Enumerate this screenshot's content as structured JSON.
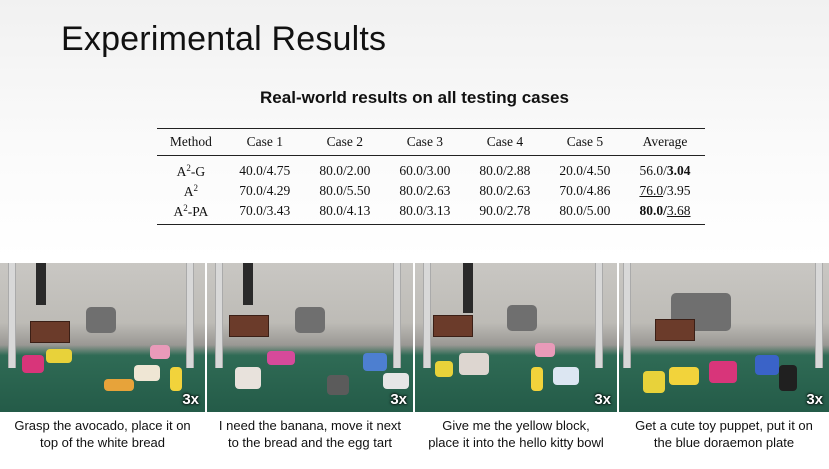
{
  "slide": {
    "title": "Experimental Results",
    "table_title": "Real-world results on all testing cases"
  },
  "table": {
    "headers": [
      "Method",
      "Case 1",
      "Case 2",
      "Case 3",
      "Case 4",
      "Case 5",
      "Average"
    ],
    "rows": [
      {
        "method_base": "A",
        "method_sup": "2",
        "method_suffix": "-G",
        "cells": [
          "40.0/4.75",
          "80.0/2.00",
          "60.0/3.00",
          "80.0/2.88",
          "20.0/4.50"
        ],
        "avg_left": "56.0/",
        "avg_right": "3.04"
      },
      {
        "method_base": "A",
        "method_sup": "2",
        "method_suffix": "",
        "cells": [
          "70.0/4.29",
          "80.0/5.50",
          "80.0/2.63",
          "80.0/2.63",
          "70.0/4.86"
        ],
        "avg_left": "76.0",
        "avg_right": "/3.95"
      },
      {
        "method_base": "A",
        "method_sup": "2",
        "method_suffix": "-PA",
        "cells": [
          "70.0/3.43",
          "80.0/4.13",
          "80.0/3.13",
          "90.0/2.78",
          "80.0/5.00"
        ],
        "avg_left": "80.0/",
        "avg_right": "3.68"
      }
    ]
  },
  "demos": [
    {
      "speed": "3x",
      "caption": "Grasp the avocado, place it on\ntop of the white bread"
    },
    {
      "speed": "3x",
      "caption": "I need the banana, move it next\nto the bread and the egg tart"
    },
    {
      "speed": "3x",
      "caption": "Give me the yellow block,\nplace it into the hello kitty bowl"
    },
    {
      "speed": "3x",
      "caption": "Get a cute toy puppet, put it on\nthe blue doraemon plate"
    }
  ]
}
